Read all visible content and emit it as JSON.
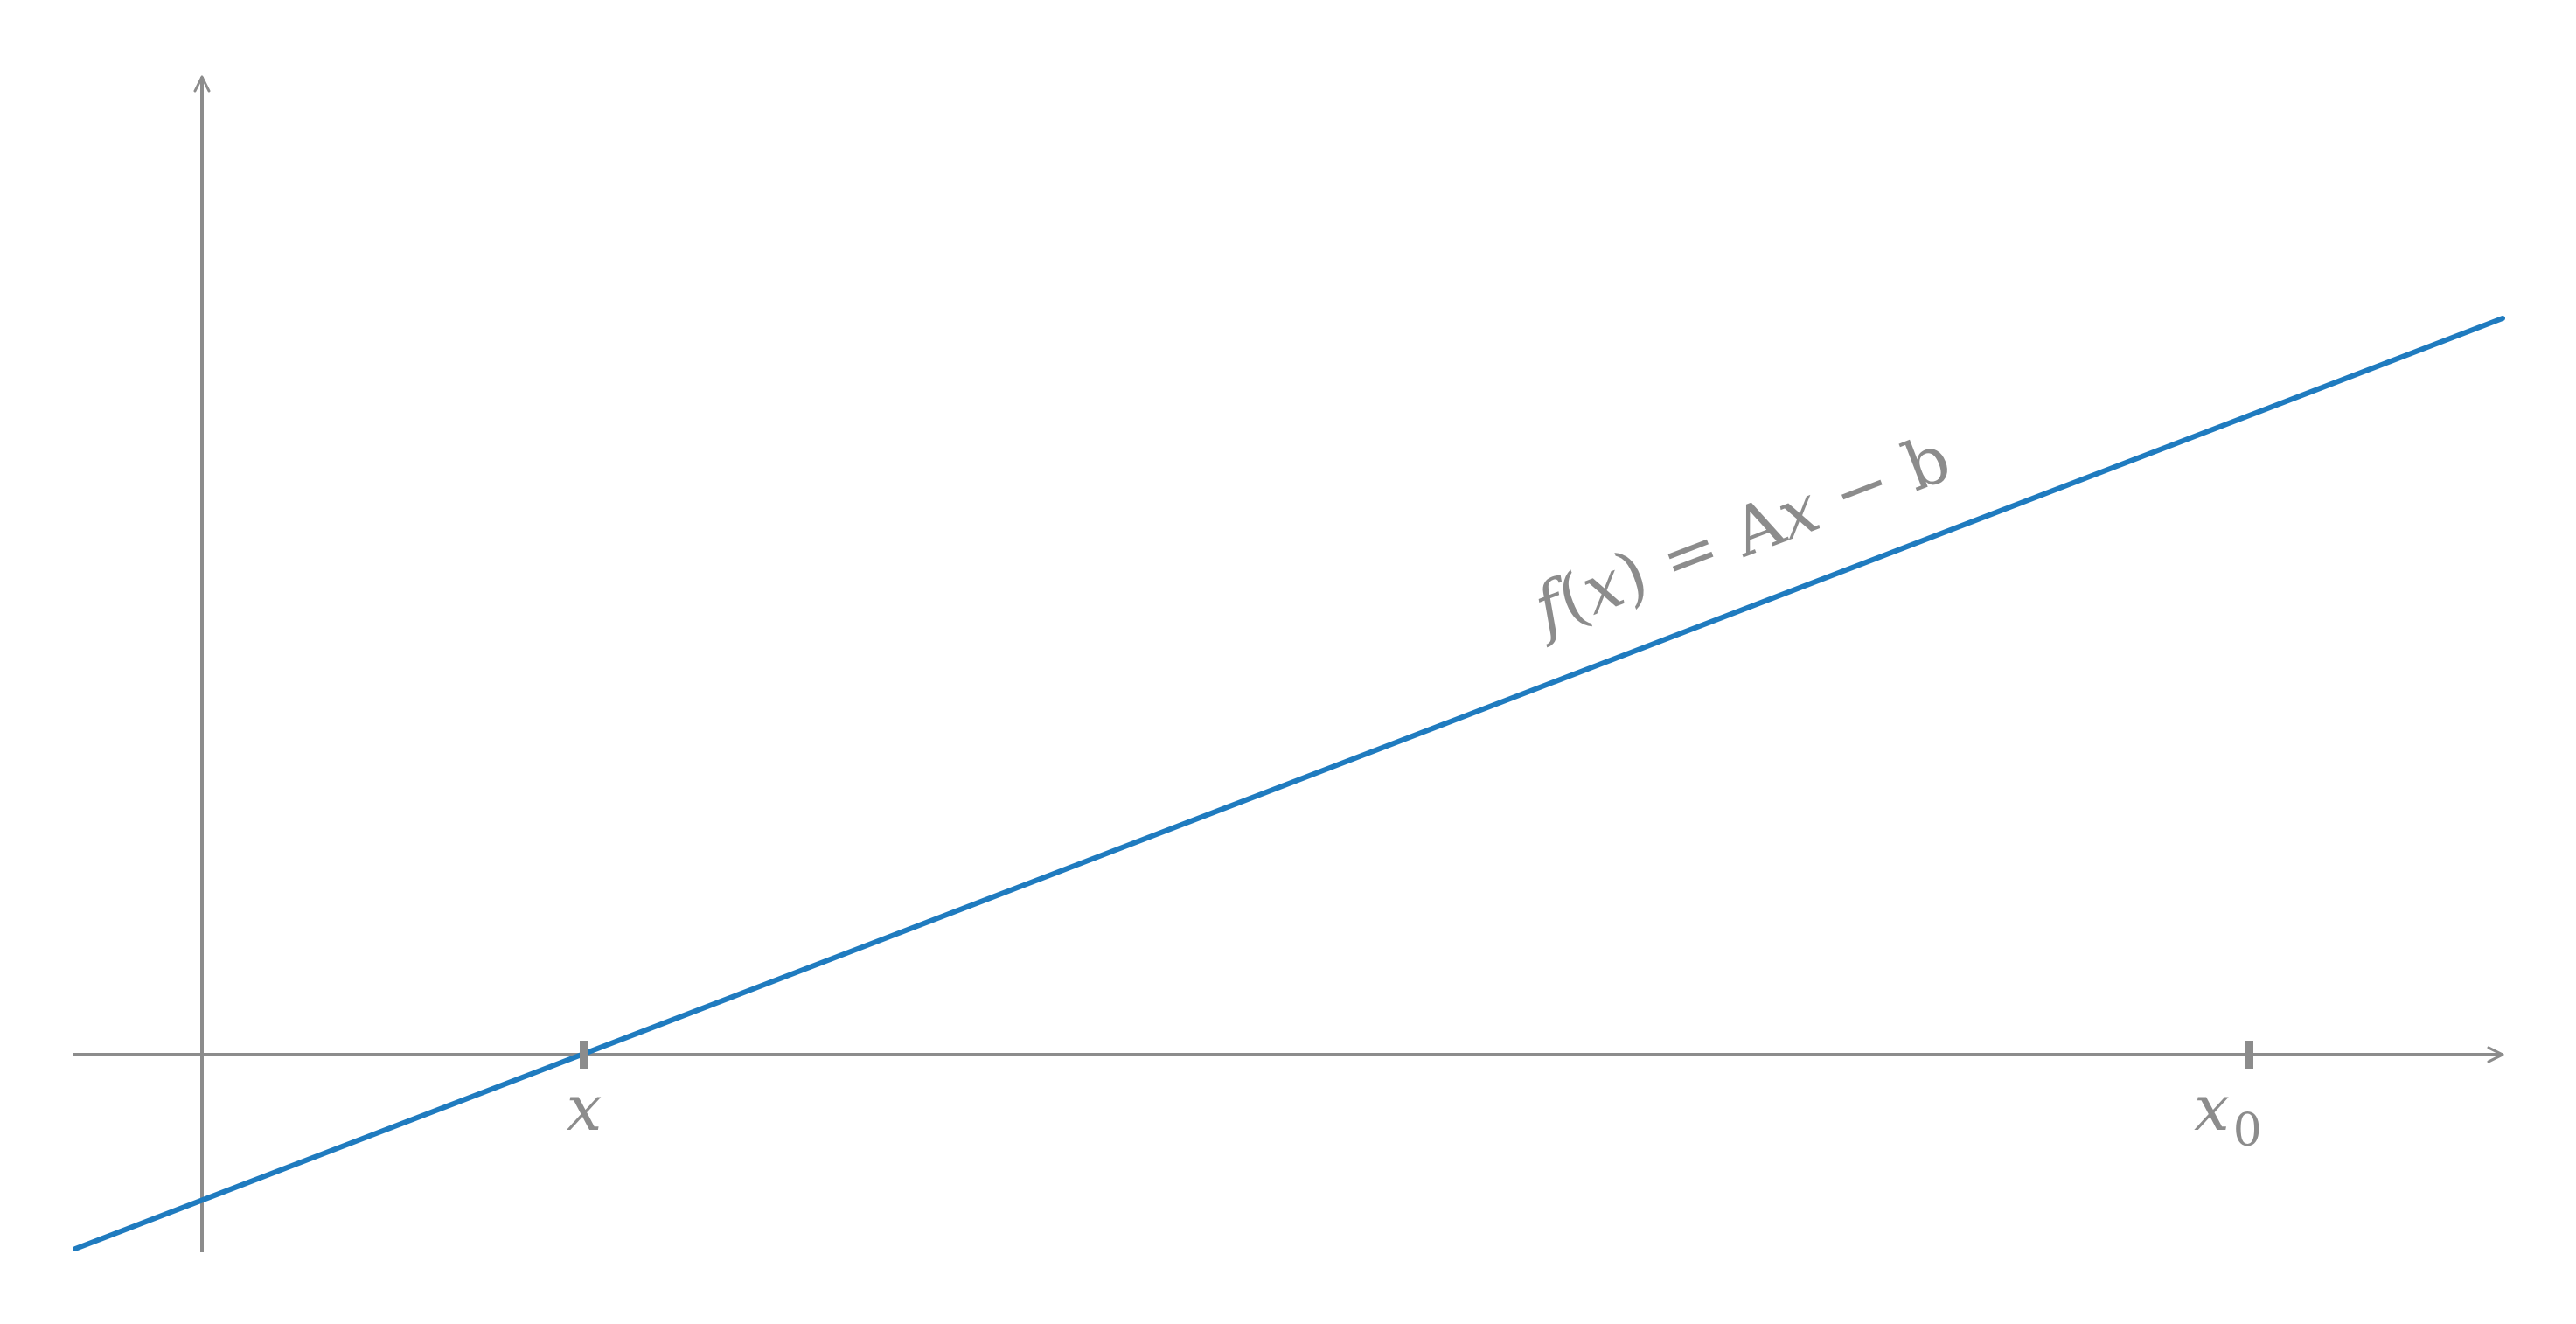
{
  "figure": {
    "colors": {
      "axis": "#8c8c8c",
      "line": "#1f7bbf",
      "label": "#8c8c8c"
    },
    "line": {
      "equation": "f(x) = Ax − b",
      "equation_parts": {
        "func": "f",
        "open": "(",
        "var": "x",
        "close": ")",
        "equals": " = ",
        "coef": "A",
        "var2": "x",
        "minus": " − ",
        "const": "b"
      }
    },
    "x_axis_ticks": [
      {
        "label": "x",
        "subscript": ""
      },
      {
        "label": "x",
        "subscript": "0"
      }
    ]
  }
}
